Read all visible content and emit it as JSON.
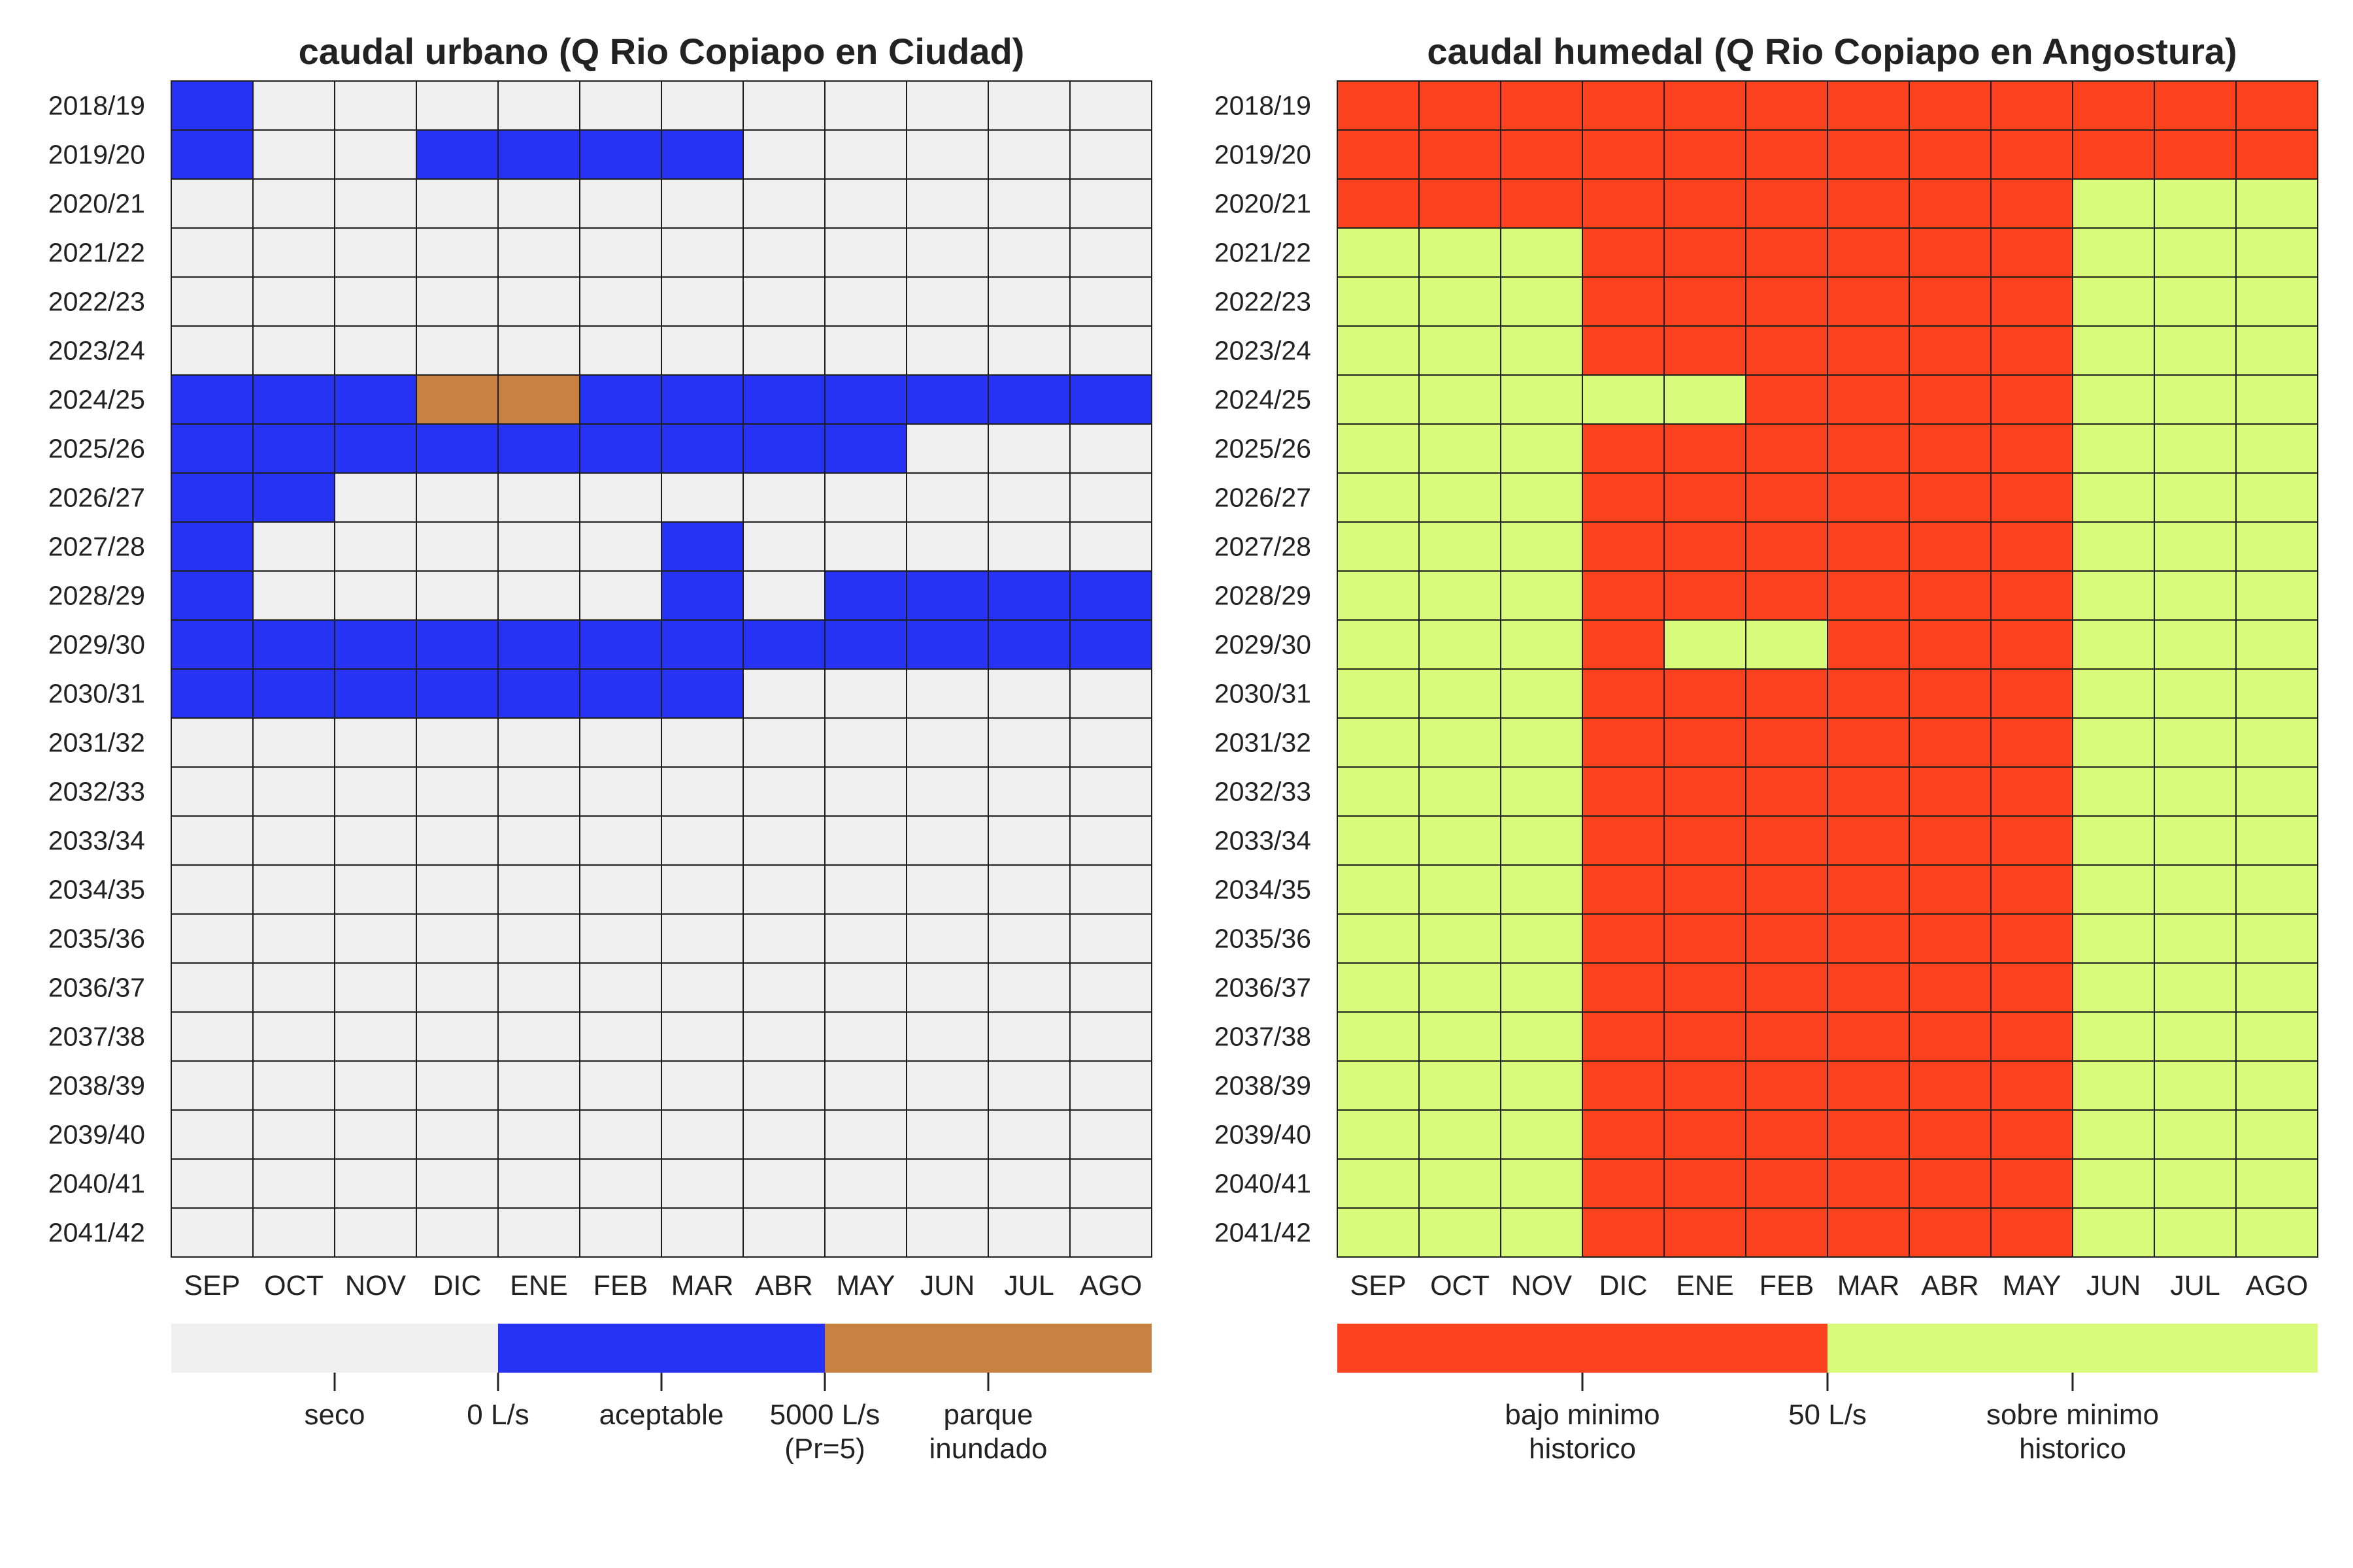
{
  "chart_data": [
    {
      "type": "heatmap",
      "title": "caudal urbano (Q Rio Copiapo en Ciudad)",
      "x_categories": [
        "SEP",
        "OCT",
        "NOV",
        "DIC",
        "ENE",
        "FEB",
        "MAR",
        "ABR",
        "MAY",
        "JUN",
        "JUL",
        "AGO"
      ],
      "y_categories": [
        "2018/19",
        "2019/20",
        "2020/21",
        "2021/22",
        "2022/23",
        "2023/24",
        "2024/25",
        "2025/26",
        "2026/27",
        "2027/28",
        "2028/29",
        "2029/30",
        "2030/31",
        "2031/32",
        "2032/33",
        "2033/34",
        "2034/35",
        "2035/36",
        "2036/37",
        "2037/38",
        "2038/39",
        "2039/40",
        "2040/41",
        "2041/42"
      ],
      "classes": [
        {
          "key": "seco",
          "label": "seco",
          "color": "#efefef"
        },
        {
          "key": "aceptable",
          "label": "aceptable",
          "color": "#2633f5"
        },
        {
          "key": "parque_inundado",
          "label": "parque\ninundado",
          "color": "#c88141"
        }
      ],
      "legend_breaks": [
        "0 L/s",
        "5000 L/s\n(Pr=5)"
      ],
      "legend_placement": "bottom",
      "values": [
        [
          1,
          0,
          0,
          0,
          0,
          0,
          0,
          0,
          0,
          0,
          0,
          0
        ],
        [
          1,
          0,
          0,
          1,
          1,
          1,
          1,
          0,
          0,
          0,
          0,
          0
        ],
        [
          0,
          0,
          0,
          0,
          0,
          0,
          0,
          0,
          0,
          0,
          0,
          0
        ],
        [
          0,
          0,
          0,
          0,
          0,
          0,
          0,
          0,
          0,
          0,
          0,
          0
        ],
        [
          0,
          0,
          0,
          0,
          0,
          0,
          0,
          0,
          0,
          0,
          0,
          0
        ],
        [
          0,
          0,
          0,
          0,
          0,
          0,
          0,
          0,
          0,
          0,
          0,
          0
        ],
        [
          1,
          1,
          1,
          2,
          2,
          1,
          1,
          1,
          1,
          1,
          1,
          1
        ],
        [
          1,
          1,
          1,
          1,
          1,
          1,
          1,
          1,
          1,
          0,
          0,
          0
        ],
        [
          1,
          1,
          0,
          0,
          0,
          0,
          0,
          0,
          0,
          0,
          0,
          0
        ],
        [
          1,
          0,
          0,
          0,
          0,
          0,
          1,
          0,
          0,
          0,
          0,
          0
        ],
        [
          1,
          0,
          0,
          0,
          0,
          0,
          1,
          0,
          1,
          1,
          1,
          1
        ],
        [
          1,
          1,
          1,
          1,
          1,
          1,
          1,
          1,
          1,
          1,
          1,
          1
        ],
        [
          1,
          1,
          1,
          1,
          1,
          1,
          1,
          0,
          0,
          0,
          0,
          0
        ],
        [
          0,
          0,
          0,
          0,
          0,
          0,
          0,
          0,
          0,
          0,
          0,
          0
        ],
        [
          0,
          0,
          0,
          0,
          0,
          0,
          0,
          0,
          0,
          0,
          0,
          0
        ],
        [
          0,
          0,
          0,
          0,
          0,
          0,
          0,
          0,
          0,
          0,
          0,
          0
        ],
        [
          0,
          0,
          0,
          0,
          0,
          0,
          0,
          0,
          0,
          0,
          0,
          0
        ],
        [
          0,
          0,
          0,
          0,
          0,
          0,
          0,
          0,
          0,
          0,
          0,
          0
        ],
        [
          0,
          0,
          0,
          0,
          0,
          0,
          0,
          0,
          0,
          0,
          0,
          0
        ],
        [
          0,
          0,
          0,
          0,
          0,
          0,
          0,
          0,
          0,
          0,
          0,
          0
        ],
        [
          0,
          0,
          0,
          0,
          0,
          0,
          0,
          0,
          0,
          0,
          0,
          0
        ],
        [
          0,
          0,
          0,
          0,
          0,
          0,
          0,
          0,
          0,
          0,
          0,
          0
        ],
        [
          0,
          0,
          0,
          0,
          0,
          0,
          0,
          0,
          0,
          0,
          0,
          0
        ],
        [
          0,
          0,
          0,
          0,
          0,
          0,
          0,
          0,
          0,
          0,
          0,
          0
        ]
      ]
    },
    {
      "type": "heatmap",
      "title": "caudal humedal (Q Rio Copiapo en Angostura)",
      "x_categories": [
        "SEP",
        "OCT",
        "NOV",
        "DIC",
        "ENE",
        "FEB",
        "MAR",
        "ABR",
        "MAY",
        "JUN",
        "JUL",
        "AGO"
      ],
      "y_categories": [
        "2018/19",
        "2019/20",
        "2020/21",
        "2021/22",
        "2022/23",
        "2023/24",
        "2024/25",
        "2025/26",
        "2026/27",
        "2027/28",
        "2028/29",
        "2029/30",
        "2030/31",
        "2031/32",
        "2032/33",
        "2033/34",
        "2034/35",
        "2035/36",
        "2036/37",
        "2037/38",
        "2038/39",
        "2039/40",
        "2040/41",
        "2041/42"
      ],
      "classes": [
        {
          "key": "bajo_minimo",
          "label": "bajo minimo\nhistorico",
          "color": "#fc411e"
        },
        {
          "key": "sobre_minimo",
          "label": "sobre minimo\nhistorico",
          "color": "#d9fb7b"
        }
      ],
      "legend_breaks": [
        "50 L/s"
      ],
      "legend_placement": "bottom",
      "values": [
        [
          0,
          0,
          0,
          0,
          0,
          0,
          0,
          0,
          0,
          0,
          0,
          0
        ],
        [
          0,
          0,
          0,
          0,
          0,
          0,
          0,
          0,
          0,
          0,
          0,
          0
        ],
        [
          0,
          0,
          0,
          0,
          0,
          0,
          0,
          0,
          0,
          1,
          1,
          1
        ],
        [
          1,
          1,
          1,
          0,
          0,
          0,
          0,
          0,
          0,
          1,
          1,
          1
        ],
        [
          1,
          1,
          1,
          0,
          0,
          0,
          0,
          0,
          0,
          1,
          1,
          1
        ],
        [
          1,
          1,
          1,
          0,
          0,
          0,
          0,
          0,
          0,
          1,
          1,
          1
        ],
        [
          1,
          1,
          1,
          1,
          1,
          0,
          0,
          0,
          0,
          1,
          1,
          1
        ],
        [
          1,
          1,
          1,
          0,
          0,
          0,
          0,
          0,
          0,
          1,
          1,
          1
        ],
        [
          1,
          1,
          1,
          0,
          0,
          0,
          0,
          0,
          0,
          1,
          1,
          1
        ],
        [
          1,
          1,
          1,
          0,
          0,
          0,
          0,
          0,
          0,
          1,
          1,
          1
        ],
        [
          1,
          1,
          1,
          0,
          0,
          0,
          0,
          0,
          0,
          1,
          1,
          1
        ],
        [
          1,
          1,
          1,
          0,
          1,
          1,
          0,
          0,
          0,
          1,
          1,
          1
        ],
        [
          1,
          1,
          1,
          0,
          0,
          0,
          0,
          0,
          0,
          1,
          1,
          1
        ],
        [
          1,
          1,
          1,
          0,
          0,
          0,
          0,
          0,
          0,
          1,
          1,
          1
        ],
        [
          1,
          1,
          1,
          0,
          0,
          0,
          0,
          0,
          0,
          1,
          1,
          1
        ],
        [
          1,
          1,
          1,
          0,
          0,
          0,
          0,
          0,
          0,
          1,
          1,
          1
        ],
        [
          1,
          1,
          1,
          0,
          0,
          0,
          0,
          0,
          0,
          1,
          1,
          1
        ],
        [
          1,
          1,
          1,
          0,
          0,
          0,
          0,
          0,
          0,
          1,
          1,
          1
        ],
        [
          1,
          1,
          1,
          0,
          0,
          0,
          0,
          0,
          0,
          1,
          1,
          1
        ],
        [
          1,
          1,
          1,
          0,
          0,
          0,
          0,
          0,
          0,
          1,
          1,
          1
        ],
        [
          1,
          1,
          1,
          0,
          0,
          0,
          0,
          0,
          0,
          1,
          1,
          1
        ],
        [
          1,
          1,
          1,
          0,
          0,
          0,
          0,
          0,
          0,
          1,
          1,
          1
        ],
        [
          1,
          1,
          1,
          0,
          0,
          0,
          0,
          0,
          0,
          1,
          1,
          1
        ],
        [
          1,
          1,
          1,
          0,
          0,
          0,
          0,
          0,
          0,
          1,
          1,
          1
        ]
      ]
    }
  ]
}
